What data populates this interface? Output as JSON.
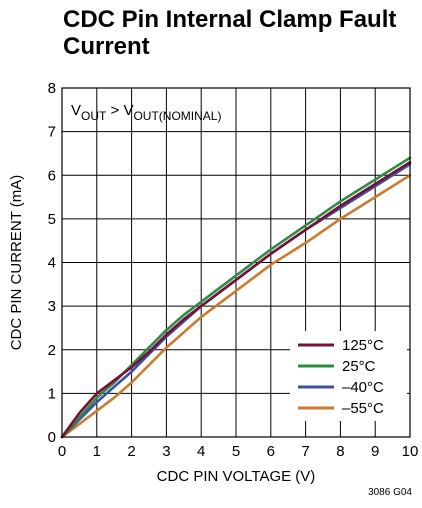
{
  "title": "CDC Pin Internal Clamp Fault Current",
  "figure_id": "3086 G04",
  "annotation": {
    "v1": "V",
    "s1": "OUT",
    "mid": " > V",
    "s2": "OUT(NOMINAL)"
  },
  "chart_data": {
    "type": "line",
    "xlabel": "CDC PIN VOLTAGE (V)",
    "ylabel": "CDC PIN CURRENT (mA)",
    "xlim": [
      0,
      10
    ],
    "ylim": [
      0,
      8
    ],
    "xticks": [
      0,
      1,
      2,
      3,
      4,
      5,
      6,
      7,
      8,
      9,
      10
    ],
    "yticks": [
      0,
      1,
      2,
      3,
      4,
      5,
      6,
      7,
      8
    ],
    "grid": true,
    "legend_position": "bottom-right",
    "series": [
      {
        "name": "125°C",
        "color": "#7a1034",
        "x": [
          0,
          0.5,
          1,
          1.5,
          2,
          2.5,
          3,
          3.5,
          4,
          5,
          6,
          7,
          8,
          9,
          10
        ],
        "y": [
          0,
          0.55,
          1.0,
          1.3,
          1.6,
          1.95,
          2.35,
          2.7,
          3.0,
          3.6,
          4.2,
          4.75,
          5.3,
          5.8,
          6.3
        ]
      },
      {
        "name": "25°C",
        "color": "#2e8b45",
        "x": [
          0,
          0.5,
          1,
          1.5,
          2,
          2.5,
          3,
          3.5,
          4,
          5,
          6,
          7,
          8,
          9,
          10
        ],
        "y": [
          0,
          0.45,
          0.9,
          1.25,
          1.65,
          2.05,
          2.45,
          2.8,
          3.1,
          3.7,
          4.3,
          4.85,
          5.4,
          5.9,
          6.4
        ]
      },
      {
        "name": "–40°C",
        "color": "#3a4fa8",
        "x": [
          0,
          0.5,
          1,
          1.5,
          2,
          2.5,
          3,
          3.5,
          4,
          5,
          6,
          7,
          8,
          9,
          10
        ],
        "y": [
          0,
          0.4,
          0.8,
          1.15,
          1.5,
          1.9,
          2.3,
          2.65,
          3.0,
          3.6,
          4.2,
          4.75,
          5.25,
          5.75,
          6.25
        ]
      },
      {
        "name": "–55°C",
        "color": "#cc7a2e",
        "x": [
          0,
          0.5,
          1,
          1.5,
          2,
          2.5,
          3,
          3.5,
          4,
          5,
          6,
          7,
          8,
          9,
          10
        ],
        "y": [
          0,
          0.3,
          0.6,
          0.9,
          1.25,
          1.65,
          2.05,
          2.4,
          2.75,
          3.35,
          3.95,
          4.45,
          5.0,
          5.5,
          6.0
        ]
      }
    ]
  }
}
